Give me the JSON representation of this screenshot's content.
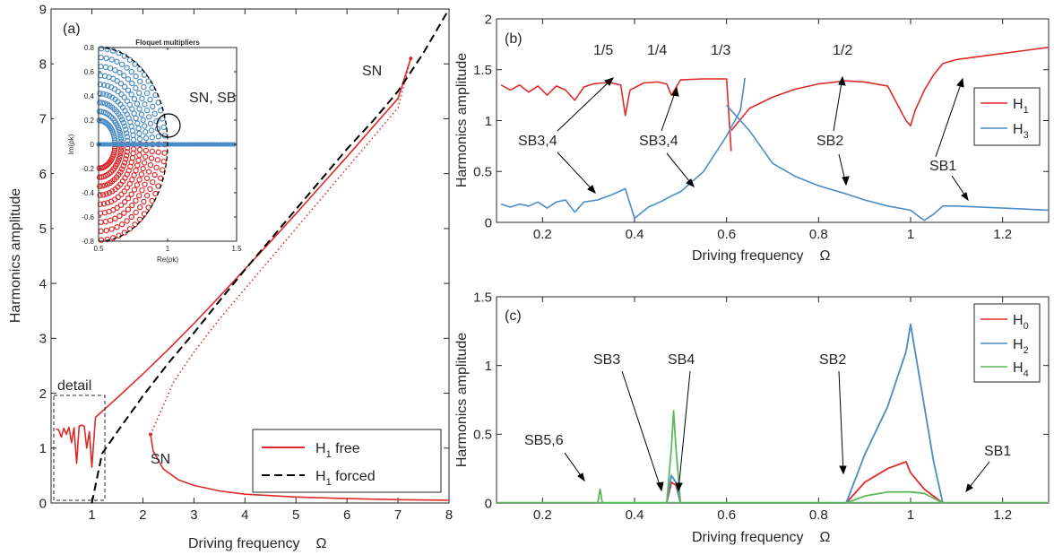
{
  "colors": {
    "red": "#dd2a2a",
    "blue": "#4a8cc4",
    "green": "#5cb85c",
    "black": "#000000"
  },
  "panels": {
    "a": {
      "tag": "(a)",
      "xlabel": "Driving frequency",
      "xsym": "Ω",
      "ylabel": "Harmonics amplitude",
      "xlim": [
        0.2,
        8
      ],
      "ylim": [
        0,
        9
      ],
      "xticks": [
        1,
        2,
        3,
        4,
        5,
        6,
        7,
        8
      ],
      "yticks": [
        0,
        1,
        2,
        3,
        4,
        5,
        6,
        7,
        8,
        9
      ],
      "legend": [
        {
          "label": "H",
          "sub": "1",
          "suffix": " free",
          "style": "solid",
          "color": "#dd2a2a"
        },
        {
          "label": "H",
          "sub": "1",
          "suffix": " forced",
          "style": "dashed",
          "color": "#000000"
        }
      ],
      "annotations": {
        "sn_top": "SN",
        "sn_bottom": "SN",
        "detail": "detail"
      },
      "inset": {
        "title": "Floquet multipliers",
        "xlabel": "Re(ρk)",
        "ylabel": "Im(ρk)",
        "xlim": [
          0.5,
          1.5
        ],
        "ylim": [
          -0.8,
          0.8
        ],
        "xticks": [
          0.5,
          1,
          1.5
        ],
        "yticks": [
          -0.8,
          -0.6,
          -0.4,
          -0.2,
          0,
          0.2,
          0.4,
          0.6,
          0.8
        ],
        "callout": "SN, SB"
      }
    },
    "b": {
      "tag": "(b)",
      "xlabel": "Driving frequency",
      "xsym": "Ω",
      "ylabel": "Harmonics amplitude",
      "xlim": [
        0.1,
        1.3
      ],
      "ylim": [
        0,
        2
      ],
      "xticks": [
        0.2,
        0.4,
        0.6,
        0.8,
        1,
        1.2
      ],
      "yticks": [
        0,
        0.5,
        1,
        1.5,
        2
      ],
      "legend": [
        {
          "label": "H",
          "sub": "1",
          "color": "#dd2a2a"
        },
        {
          "label": "H",
          "sub": "3",
          "color": "#4a8cc4"
        }
      ],
      "ratios": [
        "1/5",
        "1/4",
        "1/3",
        "1/2"
      ],
      "sb": [
        "SB3,4",
        "SB3,4",
        "SB2",
        "SB1"
      ]
    },
    "c": {
      "tag": "(c)",
      "xlabel": "Driving frequency",
      "xsym": "Ω",
      "ylabel": "Harmonics amplitude",
      "xlim": [
        0.1,
        1.3
      ],
      "ylim": [
        0,
        1.5
      ],
      "xticks": [
        0.2,
        0.4,
        0.6,
        0.8,
        1,
        1.2
      ],
      "yticks": [
        0,
        0.5,
        1,
        1.5
      ],
      "legend": [
        {
          "label": "H",
          "sub": "0",
          "color": "#dd2a2a"
        },
        {
          "label": "H",
          "sub": "2",
          "color": "#4a8cc4"
        },
        {
          "label": "H",
          "sub": "4",
          "color": "#5cb85c"
        }
      ],
      "sb": [
        "SB5,6",
        "SB3",
        "SB4",
        "SB2",
        "SB1"
      ]
    }
  },
  "chart_data": [
    {
      "type": "line",
      "panel": "a",
      "xlim": [
        0.2,
        8
      ],
      "ylim": [
        0,
        9
      ],
      "series": [
        {
          "name": "H1 free (upper branch)",
          "style": "solid",
          "x": [
            1.07,
            1.5,
            2,
            2.5,
            3,
            3.5,
            4,
            4.5,
            5,
            5.5,
            6,
            6.5,
            7,
            7.25
          ],
          "y": [
            1.56,
            1.92,
            2.35,
            2.8,
            3.27,
            3.76,
            4.26,
            4.76,
            5.27,
            5.79,
            6.31,
            6.84,
            7.37,
            8.1
          ]
        },
        {
          "name": "H1 free (lower branch)",
          "style": "solid",
          "x": [
            2.15,
            2.2,
            2.4,
            2.7,
            3,
            3.5,
            4,
            5,
            6,
            7,
            8
          ],
          "y": [
            1.25,
            0.95,
            0.62,
            0.42,
            0.32,
            0.22,
            0.16,
            0.11,
            0.08,
            0.06,
            0.05
          ]
        },
        {
          "name": "H1 free (unstable)",
          "style": "dotted",
          "x": [
            2.15,
            2.6,
            3,
            3.5,
            4,
            4.5,
            5,
            5.5,
            6,
            6.5,
            7,
            7.25
          ],
          "y": [
            1.25,
            2.2,
            2.75,
            3.35,
            3.9,
            4.45,
            5.0,
            5.55,
            6.1,
            6.65,
            7.2,
            8.1
          ]
        },
        {
          "name": "H1 free (detail)",
          "style": "solid",
          "x": [
            0.3,
            0.35,
            0.4,
            0.45,
            0.5,
            0.55,
            0.6,
            0.65,
            0.7,
            0.75,
            0.8,
            0.85,
            0.9,
            0.95,
            1.0,
            1.07
          ],
          "y": [
            1.35,
            1.33,
            1.2,
            1.36,
            1.25,
            1.38,
            1.1,
            1.37,
            0.72,
            1.4,
            1.42,
            1.4,
            1.0,
            1.3,
            0.65,
            1.56
          ]
        },
        {
          "name": "H1 forced",
          "style": "dashed",
          "x": [
            1.0,
            1.2,
            1.5,
            2.0,
            2.5,
            3.0,
            3.5,
            4.0,
            4.5,
            5.0,
            5.5,
            6.0,
            6.5,
            7.0,
            7.5,
            8.0
          ],
          "y": [
            0,
            0.9,
            1.3,
            1.95,
            2.55,
            3.1,
            3.68,
            4.25,
            4.8,
            5.35,
            5.9,
            6.45,
            6.95,
            7.5,
            8.2,
            9.0
          ]
        }
      ]
    },
    {
      "type": "scatter",
      "panel": "a-inset",
      "xlim": [
        0.5,
        1.5
      ],
      "ylim": [
        -0.8,
        0.8
      ],
      "series": [
        {
          "name": "upper multipliers",
          "color": "#4a8cc4",
          "note": "half-disk of points, Im>0, plus real axis band from 0.5 to 1.5"
        },
        {
          "name": "lower multipliers",
          "color": "#dd2a2a",
          "note": "half-disk of points, Im<0"
        }
      ]
    },
    {
      "type": "line",
      "panel": "b",
      "xlim": [
        0.1,
        1.3
      ],
      "ylim": [
        0,
        2
      ],
      "series": [
        {
          "name": "H1",
          "color": "#dd2a2a",
          "x": [
            0.11,
            0.13,
            0.15,
            0.17,
            0.19,
            0.21,
            0.23,
            0.25,
            0.27,
            0.29,
            0.31,
            0.33,
            0.35,
            0.37,
            0.38,
            0.39,
            0.42,
            0.45,
            0.47,
            0.48,
            0.5,
            0.55,
            0.6,
            0.61
          ],
          "y": [
            1.35,
            1.3,
            1.35,
            1.28,
            1.34,
            1.25,
            1.34,
            1.3,
            1.2,
            1.33,
            1.36,
            1.37,
            1.37,
            1.35,
            1.05,
            1.3,
            1.37,
            1.38,
            1.36,
            1.25,
            1.4,
            1.41,
            1.41,
            0.7
          ]
        },
        {
          "name": "H1 (right)",
          "color": "#dd2a2a",
          "x": [
            0.61,
            0.65,
            0.7,
            0.75,
            0.8,
            0.86,
            0.9,
            0.95,
            0.99,
            1.0,
            1.01,
            1.03,
            1.05,
            1.07,
            1.1,
            1.2,
            1.3
          ],
          "y": [
            0.9,
            1.12,
            1.23,
            1.31,
            1.36,
            1.39,
            1.38,
            1.34,
            1.0,
            0.95,
            1.1,
            1.3,
            1.45,
            1.56,
            1.6,
            1.66,
            1.72
          ]
        },
        {
          "name": "H3",
          "color": "#4a8cc4",
          "x": [
            0.11,
            0.13,
            0.15,
            0.17,
            0.19,
            0.21,
            0.23,
            0.25,
            0.27,
            0.29,
            0.32,
            0.35,
            0.38,
            0.4,
            0.43,
            0.46,
            0.48,
            0.5,
            0.55,
            0.6,
            0.63,
            0.64
          ],
          "y": [
            0.18,
            0.15,
            0.18,
            0.16,
            0.2,
            0.14,
            0.2,
            0.22,
            0.1,
            0.2,
            0.22,
            0.27,
            0.33,
            0.04,
            0.15,
            0.21,
            0.26,
            0.3,
            0.5,
            0.85,
            1.1,
            1.42
          ]
        },
        {
          "name": "H3 (right)",
          "color": "#4a8cc4",
          "x": [
            0.6,
            0.65,
            0.7,
            0.75,
            0.8,
            0.86,
            0.9,
            0.95,
            1.0,
            1.02,
            1.03,
            1.05,
            1.07,
            1.1,
            1.2,
            1.3
          ],
          "y": [
            1.15,
            0.9,
            0.58,
            0.45,
            0.36,
            0.28,
            0.22,
            0.16,
            0.12,
            0.05,
            0.02,
            0.08,
            0.16,
            0.16,
            0.14,
            0.12
          ]
        }
      ]
    },
    {
      "type": "line",
      "panel": "c",
      "xlim": [
        0.1,
        1.3
      ],
      "ylim": [
        0,
        1.5
      ],
      "series": [
        {
          "name": "H0",
          "color": "#dd2a2a",
          "x": [
            0.47,
            0.48,
            0.49,
            0.5,
            0.86,
            0.9,
            0.95,
            0.99,
            1.0,
            1.03,
            1.07
          ],
          "y": [
            0,
            0.15,
            0.13,
            0,
            0,
            0.15,
            0.25,
            0.3,
            0.22,
            0.1,
            0
          ]
        },
        {
          "name": "H2",
          "color": "#4a8cc4",
          "x": [
            0.47,
            0.48,
            0.49,
            0.5,
            0.86,
            0.9,
            0.95,
            0.99,
            1.0,
            1.01,
            1.03,
            1.05,
            1.07
          ],
          "y": [
            0,
            0.2,
            0.15,
            0,
            0,
            0.35,
            0.7,
            1.1,
            1.3,
            1.1,
            0.7,
            0.3,
            0
          ]
        },
        {
          "name": "H4",
          "color": "#5cb85c",
          "x": [
            0.32,
            0.325,
            0.33,
            0.47,
            0.48,
            0.485,
            0.49,
            0.5,
            0.86,
            0.9,
            0.95,
            1.0,
            1.03,
            1.07
          ],
          "y": [
            0,
            0.1,
            0,
            0,
            0.4,
            0.67,
            0.4,
            0,
            0,
            0.05,
            0.08,
            0.08,
            0.07,
            0
          ]
        }
      ]
    }
  ]
}
